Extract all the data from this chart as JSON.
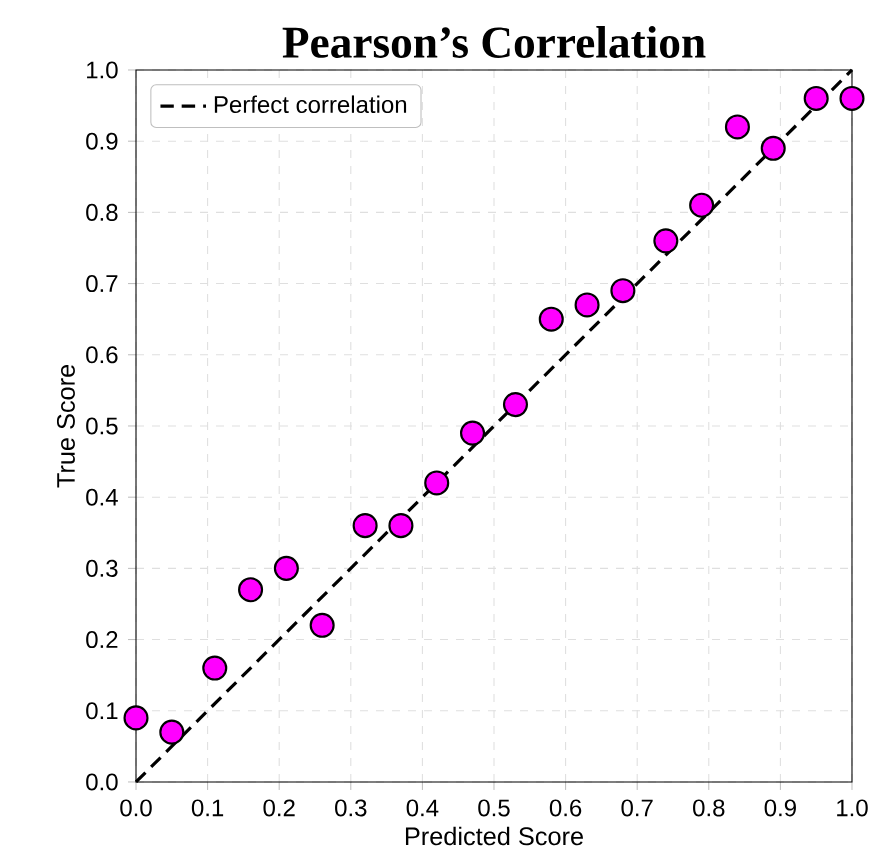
{
  "chart_data": {
    "type": "scatter",
    "title": "Pearson’s Correlation",
    "xlabel": "Predicted Score",
    "ylabel": "True Score",
    "xlim": [
      0,
      1
    ],
    "ylim": [
      0,
      1
    ],
    "xticks": [
      {
        "value": 0,
        "label": "0.0"
      },
      0.1,
      0.2,
      0.3,
      0.4,
      0.5,
      0.6,
      0.7,
      0.8,
      0.9,
      {
        "value": 1,
        "label": "1.0"
      }
    ],
    "yticks": [
      {
        "value": 0,
        "label": "0.0"
      },
      0.1,
      0.2,
      0.3,
      0.4,
      0.5,
      0.6,
      0.7,
      0.8,
      0.9,
      {
        "value": 1,
        "label": "1.0"
      }
    ],
    "grid": true,
    "legend": "top left",
    "series": [
      {
        "type": "line",
        "name": "Perfect correlation",
        "color": "#000000",
        "line_style": "dashed",
        "marker": "none",
        "x": [
          0,
          1
        ],
        "values": [
          0,
          1
        ]
      },
      {
        "color": "#ff00ff",
        "marker": "circle",
        "x": [
          0,
          0.05,
          0.11,
          0.16,
          0.21,
          0.26,
          0.32,
          0.37,
          0.42,
          0.47,
          0.53,
          0.58,
          0.63,
          0.68,
          0.74,
          0.79,
          0.84,
          0.89,
          0.95,
          1.0
        ],
        "values": [
          0.09,
          0.07,
          0.16,
          0.27,
          0.3,
          0.22,
          0.36,
          0.36,
          0.42,
          0.49,
          0.53,
          0.65,
          0.67,
          0.69,
          0.76,
          0.81,
          0.92,
          0.89,
          0.96,
          0.96
        ]
      }
    ]
  }
}
